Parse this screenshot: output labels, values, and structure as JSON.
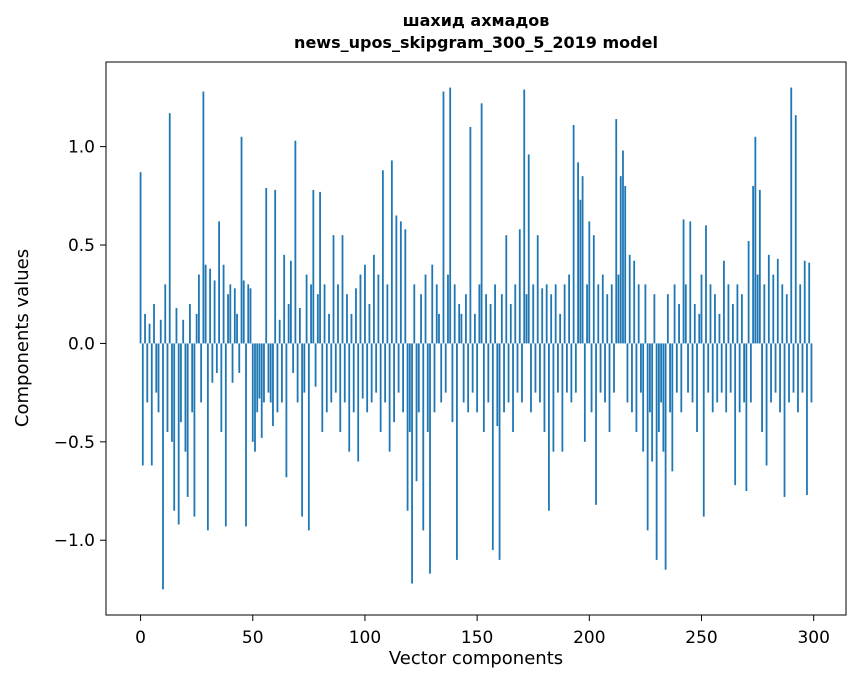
{
  "figure": {
    "background": "#ffffff"
  },
  "chart_data": {
    "type": "bar",
    "title": "шахид ахмадов",
    "subtitle": "news_upos_skipgram_300_5_2019 model",
    "xlabel": "Vector components",
    "ylabel": "Components values",
    "color": "#1f77b4",
    "bar_width": 0.8,
    "grid": false,
    "legend": false,
    "xlim": [
      -15.4,
      314.4
    ],
    "ylim": [
      -1.38,
      1.43
    ],
    "xticks": [
      0,
      50,
      100,
      150,
      200,
      250,
      300
    ],
    "xtick_labels": [
      "0",
      "50",
      "100",
      "150",
      "200",
      "250",
      "300"
    ],
    "yticks": [
      -1.0,
      -0.5,
      0.0,
      0.5,
      1.0
    ],
    "ytick_labels": [
      "−1.0",
      "−0.5",
      "0.0",
      "0.5",
      "1.0"
    ],
    "x_start": 0,
    "values": [
      0.87,
      -0.62,
      0.15,
      -0.3,
      0.1,
      -0.62,
      0.2,
      -0.25,
      -0.35,
      0.12,
      -1.25,
      0.3,
      -0.45,
      1.17,
      -0.5,
      -0.85,
      0.18,
      -0.92,
      -0.4,
      0.12,
      -0.55,
      -0.78,
      0.2,
      -0.35,
      -0.88,
      0.15,
      0.35,
      -0.3,
      1.28,
      0.4,
      -0.95,
      0.38,
      -0.2,
      0.32,
      -0.15,
      0.62,
      -0.45,
      0.4,
      -0.93,
      0.25,
      0.3,
      -0.2,
      0.28,
      0.15,
      -0.15,
      1.05,
      0.32,
      -0.93,
      0.3,
      0.28,
      -0.5,
      -0.55,
      -0.35,
      -0.28,
      -0.48,
      -0.3,
      0.79,
      -0.25,
      -0.3,
      -0.42,
      0.78,
      -0.35,
      0.12,
      -0.3,
      0.45,
      -0.68,
      0.2,
      0.42,
      -0.15,
      1.03,
      -0.3,
      0.18,
      -0.88,
      -0.25,
      0.35,
      -0.95,
      0.3,
      0.78,
      -0.22,
      0.25,
      0.77,
      -0.45,
      0.3,
      -0.35,
      0.15,
      -0.3,
      0.55,
      -0.25,
      0.3,
      -0.45,
      0.55,
      -0.3,
      0.25,
      -0.55,
      0.15,
      -0.35,
      0.28,
      -0.6,
      0.35,
      -0.28,
      0.4,
      -0.35,
      0.2,
      -0.3,
      0.45,
      -0.25,
      0.35,
      -0.45,
      0.88,
      -0.3,
      0.3,
      -0.55,
      0.93,
      -0.4,
      0.65,
      -0.25,
      0.62,
      -0.35,
      0.58,
      -0.85,
      -0.45,
      -1.22,
      0.3,
      -0.7,
      -0.35,
      0.25,
      -0.95,
      0.35,
      -0.45,
      -1.17,
      0.4,
      -0.35,
      0.3,
      0.15,
      -0.3,
      1.28,
      -0.25,
      0.35,
      1.3,
      -0.4,
      0.3,
      -1.1,
      0.2,
      0.15,
      -0.3,
      0.25,
      -0.35,
      1.1,
      -0.25,
      0.15,
      -0.35,
      0.3,
      1.22,
      -0.45,
      0.25,
      -0.3,
      0.2,
      -1.05,
      0.3,
      -0.42,
      -1.1,
      0.25,
      -0.35,
      0.55,
      -0.3,
      0.2,
      -0.45,
      0.3,
      -0.25,
      0.58,
      -0.3,
      1.29,
      0.25,
      0.96,
      -0.35,
      0.3,
      -0.25,
      0.55,
      -0.3,
      0.28,
      -0.45,
      0.3,
      -0.85,
      0.25,
      -0.55,
      0.3,
      -0.25,
      0.15,
      -0.55,
      0.3,
      -0.25,
      0.35,
      -0.3,
      1.11,
      -0.25,
      0.92,
      0.73,
      0.85,
      -0.5,
      0.3,
      0.62,
      -0.35,
      0.55,
      -0.82,
      0.3,
      -0.25,
      0.35,
      -0.3,
      0.25,
      -0.45,
      0.3,
      -0.25,
      1.14,
      0.35,
      0.85,
      0.98,
      0.8,
      -0.3,
      0.45,
      -0.35,
      0.42,
      -0.45,
      0.3,
      -0.25,
      -0.55,
      0.3,
      -0.95,
      -0.35,
      -0.6,
      0.25,
      -1.1,
      -0.45,
      -0.3,
      -0.55,
      -1.15,
      0.25,
      -0.35,
      -0.65,
      0.3,
      -0.25,
      0.2,
      -0.35,
      0.63,
      0.3,
      -0.25,
      0.62,
      -0.3,
      0.2,
      -0.45,
      0.15,
      0.35,
      -0.88,
      0.6,
      -0.25,
      0.3,
      -0.35,
      0.25,
      -0.3,
      0.15,
      -0.25,
      0.42,
      -0.35,
      0.3,
      -0.25,
      0.2,
      -0.72,
      0.3,
      -0.35,
      0.25,
      -0.3,
      -0.75,
      0.52,
      -0.3,
      0.8,
      1.05,
      0.35,
      0.78,
      -0.45,
      0.3,
      -0.62,
      0.45,
      -0.3,
      0.35,
      -0.25,
      0.43,
      -0.35,
      0.3,
      -0.78,
      0.25,
      -0.3,
      1.3,
      -0.25,
      1.16,
      -0.35,
      0.3,
      -0.25,
      0.42,
      -0.77,
      0.41,
      -0.3
    ]
  }
}
